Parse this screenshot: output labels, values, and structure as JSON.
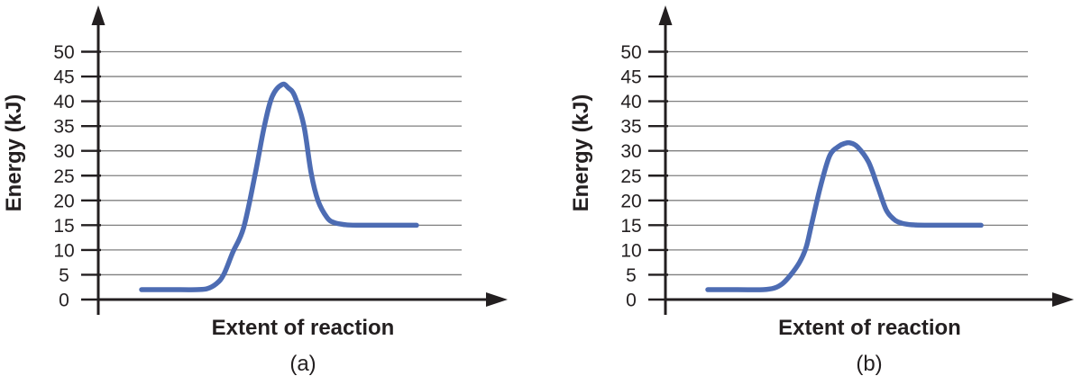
{
  "figure": {
    "background": "#ffffff",
    "panel_count": 2
  },
  "colors": {
    "curve_blue": "#4d6cb3",
    "grid": "#7f7f7f",
    "axis": "#231f20",
    "text": "#231f20"
  },
  "chart_data": [
    {
      "type": "line",
      "caption": "(a)",
      "xlabel": "Extent of reaction",
      "ylabel": "Energy (kJ)",
      "ylim": [
        0,
        50
      ],
      "yticks": [
        0,
        5,
        10,
        15,
        20,
        25,
        30,
        35,
        40,
        45,
        50
      ],
      "x_range_percent": [
        0,
        100
      ],
      "grid": true,
      "legend": null,
      "line_color": "#4d6cb3",
      "key_values": {
        "initial_energy_kJ": 2,
        "peak_energy_kJ": 43.5,
        "final_energy_kJ": 15
      },
      "points": [
        [
          11.9,
          2
        ],
        [
          20,
          2
        ],
        [
          27,
          2
        ],
        [
          30,
          2.2
        ],
        [
          32.5,
          3.2
        ],
        [
          34.5,
          5
        ],
        [
          37,
          9.5
        ],
        [
          40,
          14.5
        ],
        [
          43.2,
          25.4
        ],
        [
          45.7,
          35
        ],
        [
          47.9,
          41
        ],
        [
          50.6,
          43.4
        ],
        [
          52.3,
          42.7
        ],
        [
          54.1,
          41
        ],
        [
          56.6,
          35
        ],
        [
          58.6,
          25.4
        ],
        [
          60.5,
          19.9
        ],
        [
          63,
          16.5
        ],
        [
          65,
          15.5
        ],
        [
          68,
          15.1
        ],
        [
          71,
          15
        ],
        [
          79,
          15
        ],
        [
          87.6,
          15
        ]
      ]
    },
    {
      "type": "line",
      "caption": "(b)",
      "xlabel": "Extent of reaction",
      "ylabel": "Energy (kJ)",
      "ylim": [
        0,
        50
      ],
      "yticks": [
        0,
        5,
        10,
        15,
        20,
        25,
        30,
        35,
        40,
        45,
        50
      ],
      "x_range_percent": [
        0,
        100
      ],
      "grid": true,
      "legend": null,
      "line_color": "#4d6cb3",
      "key_values": {
        "initial_energy_kJ": 2,
        "peak_energy_kJ": 31.5,
        "final_energy_kJ": 15
      },
      "points": [
        [
          11.7,
          2
        ],
        [
          20,
          2
        ],
        [
          27,
          2
        ],
        [
          30,
          2.3
        ],
        [
          32.3,
          3.2
        ],
        [
          34.6,
          5
        ],
        [
          37,
          7.5
        ],
        [
          38.8,
          10.5
        ],
        [
          40.3,
          15.1
        ],
        [
          42.8,
          22.9
        ],
        [
          45.3,
          29
        ],
        [
          47.8,
          30.9
        ],
        [
          49.5,
          31.5
        ],
        [
          51,
          31.6
        ],
        [
          53,
          30.8
        ],
        [
          56,
          27.8
        ],
        [
          58.5,
          22.9
        ],
        [
          60.9,
          18.1
        ],
        [
          63,
          16.2
        ],
        [
          64.4,
          15.6
        ],
        [
          66.5,
          15.2
        ],
        [
          68.9,
          15.05
        ],
        [
          72,
          15
        ],
        [
          80,
          15
        ],
        [
          87.1,
          15
        ]
      ]
    }
  ]
}
